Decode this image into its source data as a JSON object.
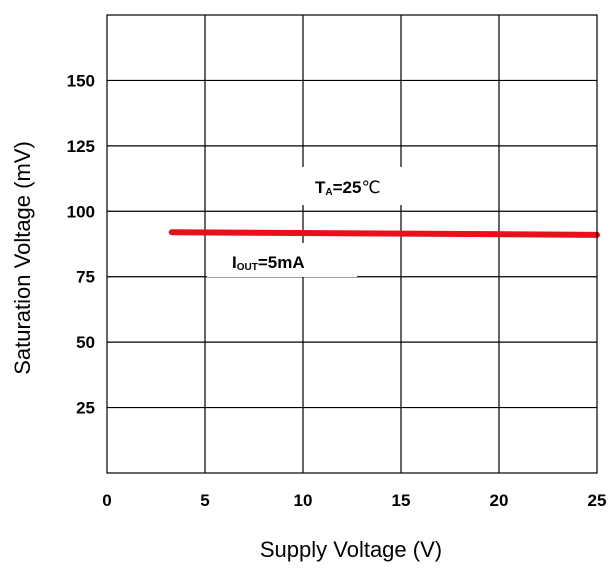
{
  "chart_data": {
    "type": "line",
    "xlabel": "Supply Voltage (V)",
    "ylabel": "Saturation Voltage (mV)",
    "xlim": [
      0,
      25
    ],
    "ylim": [
      0,
      175
    ],
    "x_ticks": [
      "0",
      "5",
      "10",
      "15",
      "20",
      "25"
    ],
    "y_ticks": [
      "25",
      "50",
      "75",
      "100",
      "125",
      "150"
    ],
    "grid": true,
    "series": [
      {
        "color": "#e8111a",
        "x": [
          3.3,
          25
        ],
        "y": [
          92,
          91
        ]
      }
    ],
    "annotations": {
      "temperature": {
        "main": "T",
        "sub": "A",
        "value": "=25",
        "unit": "℃"
      },
      "current": {
        "main": "I",
        "sub": "OUT",
        "value": "=5mA"
      }
    }
  }
}
